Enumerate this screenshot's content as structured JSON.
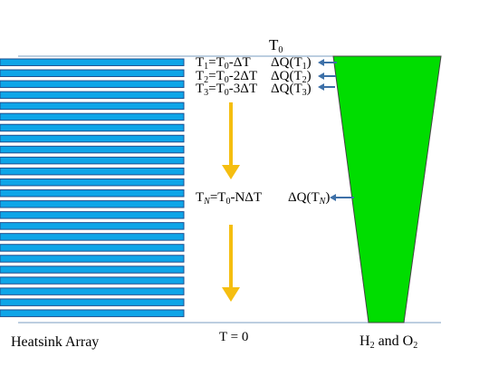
{
  "diagram": {
    "top_label": "T₀",
    "bottom_label": "T = 0",
    "left_caption": "Heatsink Array",
    "right_caption": "H₂ and O₂",
    "bar_color": "#0ea5e8",
    "bar_border_color": "#1f4f8f",
    "cone_color": "#00dd00",
    "arrow_color": "#f5be10",
    "pointer_color": "#3d70a8",
    "heatsink_bar_count": 24,
    "temperatures": [
      {
        "main": "T",
        "sub": "1",
        "rest": "=T",
        "rest_sub": "0",
        "tail": "-ΔT"
      },
      {
        "main": "T",
        "sub": "2",
        "rest": "=T",
        "rest_sub": "0",
        "tail": "-2ΔT"
      },
      {
        "main": "T",
        "sub": "3",
        "rest": "=T",
        "rest_sub": "0",
        "tail": "-3ΔT"
      },
      {
        "main": "T",
        "sub": "N",
        "rest": "=T",
        "rest_sub": "0",
        "tail": "-NΔT"
      }
    ],
    "heat_flows": [
      {
        "main": "ΔQ(T",
        "sub": "1",
        "tail": ")"
      },
      {
        "main": "ΔQ(T",
        "sub": "2",
        "tail": ")"
      },
      {
        "main": "ΔQ(T",
        "sub": "3",
        "tail": ")"
      },
      {
        "main": "ΔQ(T",
        "sub": "N",
        "tail": ")"
      }
    ]
  }
}
